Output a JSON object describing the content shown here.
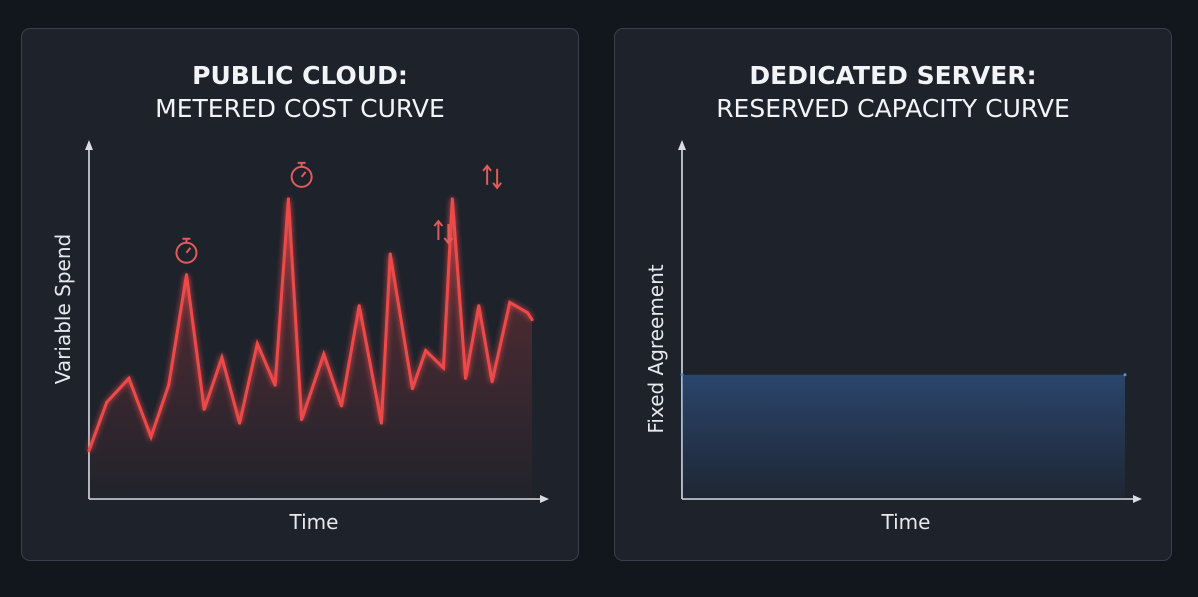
{
  "panels": [
    {
      "title_bold": "PUBLIC CLOUD:",
      "title_sub": "METERED COST CURVE"
    },
    {
      "title_bold": "DEDICATED SERVER:",
      "title_sub": "RESERVED CAPACITY CURVE"
    }
  ],
  "colors": {
    "metered": "#ee4a4a",
    "reserved": "#5a8fd8"
  },
  "chart_data": [
    {
      "type": "line",
      "title": "PUBLIC CLOUD: METERED COST CURVE",
      "xlabel": "Time",
      "ylabel": "Variable Spend",
      "xlim": [
        0,
        100
      ],
      "ylim": [
        0,
        100
      ],
      "grid": false,
      "series": [
        {
          "x": [
            0,
            4,
            9,
            14,
            18,
            22,
            26,
            30,
            34,
            38,
            42,
            45,
            48,
            53,
            57,
            61,
            66,
            68,
            73,
            76,
            80,
            82,
            85,
            88,
            91,
            95,
            99,
            100
          ],
          "y": [
            14,
            28,
            35,
            18,
            33,
            65,
            26,
            41,
            22,
            45,
            33,
            87,
            23,
            42,
            27,
            56,
            22,
            71,
            32,
            43,
            38,
            87,
            35,
            56,
            34,
            57,
            54,
            52
          ]
        }
      ],
      "markers": [
        {
          "icon": "stopwatch-icon",
          "x": 22,
          "y": 65
        },
        {
          "icon": "stopwatch-icon",
          "x": 48,
          "y": 87
        },
        {
          "icon": "up-down-arrows-icon",
          "x": 80,
          "y": 71
        },
        {
          "icon": "up-down-arrows-icon",
          "x": 91,
          "y": 87
        }
      ]
    },
    {
      "type": "line",
      "title": "DEDICATED SERVER: RESERVED CAPACITY CURVE",
      "xlabel": "Time",
      "ylabel": "Fixed Agreement",
      "xlim": [
        0,
        100
      ],
      "ylim": [
        0,
        100
      ],
      "grid": false,
      "series": [
        {
          "x": [
            0,
            100
          ],
          "y": [
            36,
            36
          ]
        }
      ]
    }
  ]
}
